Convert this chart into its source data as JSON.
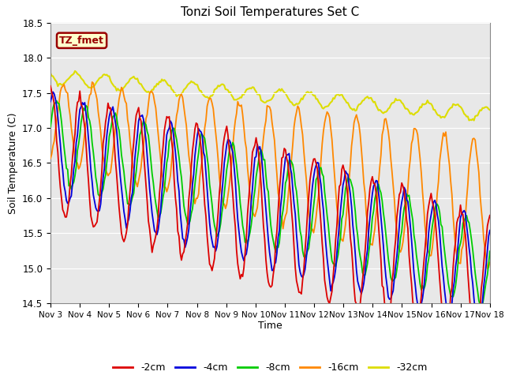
{
  "title": "Tonzi Soil Temperatures Set C",
  "xlabel": "Time",
  "ylabel": "Soil Temperature (C)",
  "ylim": [
    14.5,
    18.5
  ],
  "background_color": "#e8e8e8",
  "annotation_text": "TZ_fmet",
  "annotation_bg": "#ffffcc",
  "annotation_border": "#990000",
  "legend_entries": [
    "-2cm",
    "-4cm",
    "-8cm",
    "-16cm",
    "-32cm"
  ],
  "line_colors": [
    "#dd0000",
    "#0000dd",
    "#00cc00",
    "#ff8800",
    "#dddd00"
  ],
  "xtick_labels": [
    "Nov 3",
    "Nov 4",
    "Nov 5",
    "Nov 6",
    "Nov 7",
    "Nov 8",
    "Nov 9",
    "Nov 10",
    "Nov 11",
    "Nov 12",
    "Nov 13",
    "Nov 14",
    "Nov 15",
    "Nov 16",
    "Nov 17",
    "Nov 18"
  ],
  "ytick_vals": [
    14.5,
    15.0,
    15.5,
    16.0,
    16.5,
    17.0,
    17.5,
    18.0,
    18.5
  ]
}
